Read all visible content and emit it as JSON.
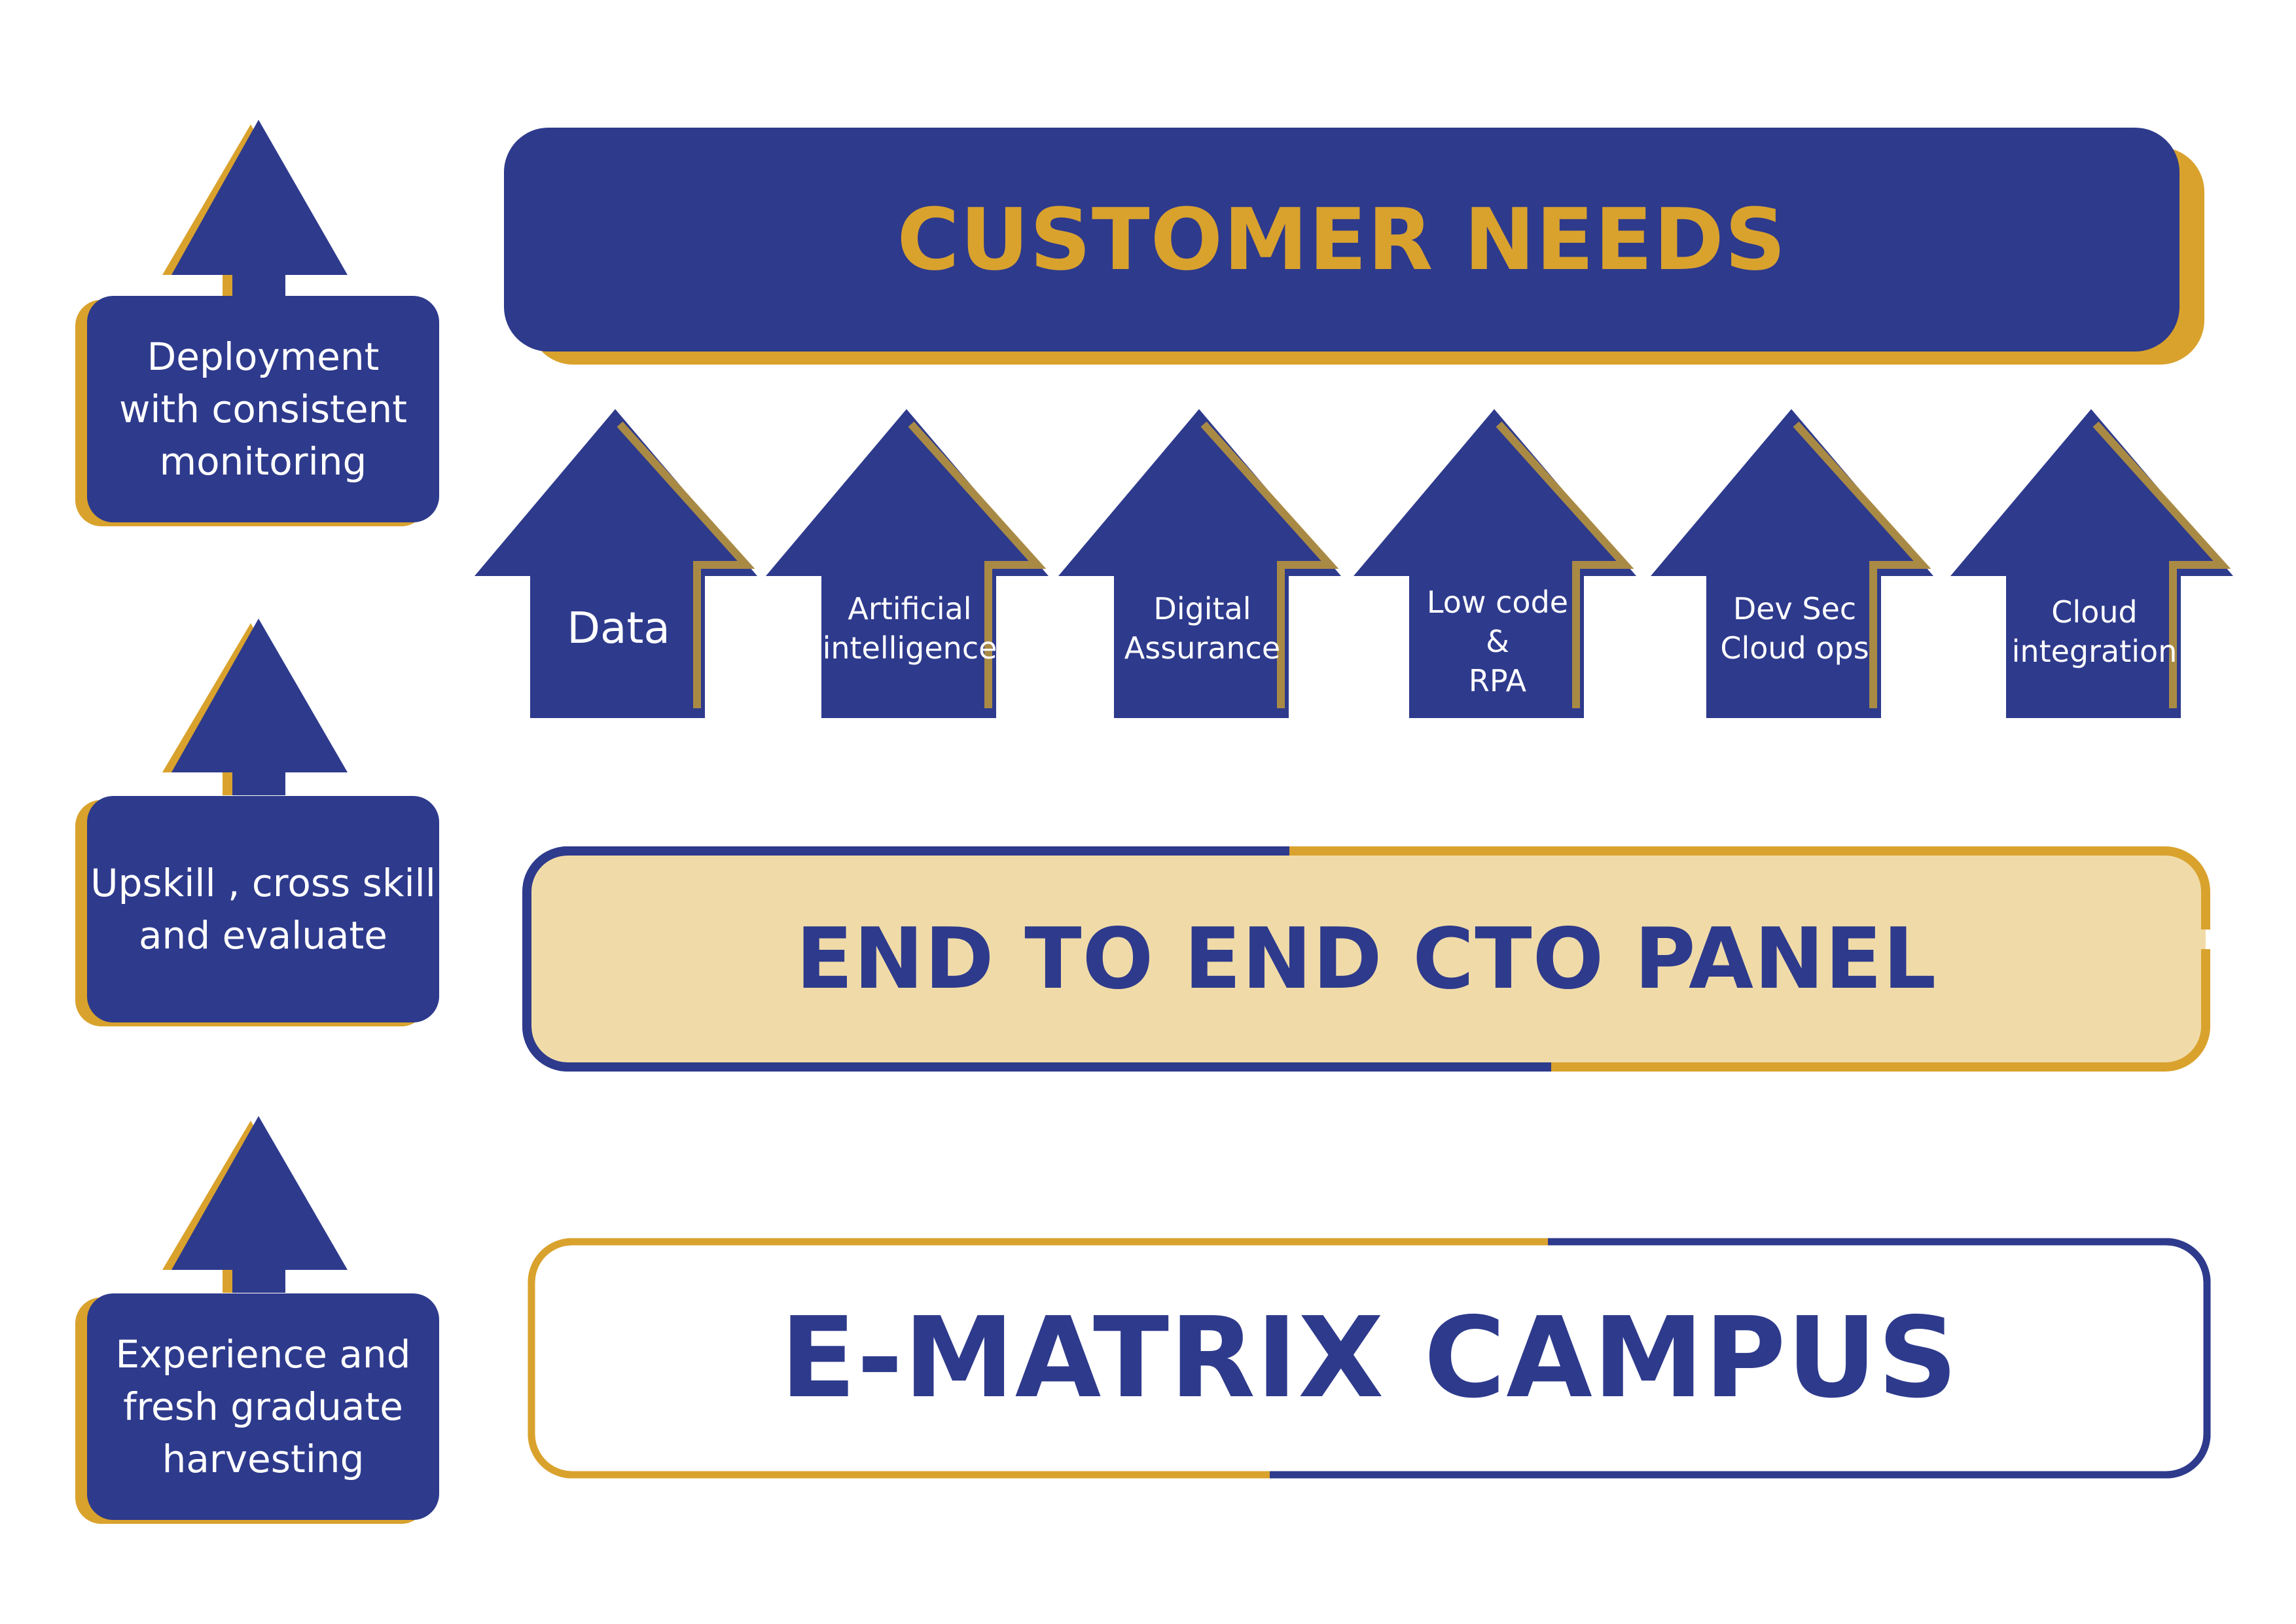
{
  "colors": {
    "navy": "#2E3A8C",
    "gold": "#D9A22D",
    "cream": "#F0DBA8",
    "white": "#FFFFFF"
  },
  "side_steps": [
    {
      "label": "Deployment\nwith consistent\nmonitoring"
    },
    {
      "label": "Upskill , cross skill\nand evaluate"
    },
    {
      "label": "Experience and\nfresh graduate\nharvesting"
    }
  ],
  "customer_needs": {
    "label": "CUSTOMER NEEDS"
  },
  "capabilities": [
    {
      "label": "Data"
    },
    {
      "label": "Artificial\nintelligence"
    },
    {
      "label": "Digital\nAssurance"
    },
    {
      "label": "Low code\n&\nRPA"
    },
    {
      "label": "Dev Sec\nCloud ops"
    },
    {
      "label": "Cloud\nintegration"
    }
  ],
  "cto_panel": {
    "label": "END TO END CTO PANEL"
  },
  "campus": {
    "label": "E-MATRIX CAMPUS"
  }
}
